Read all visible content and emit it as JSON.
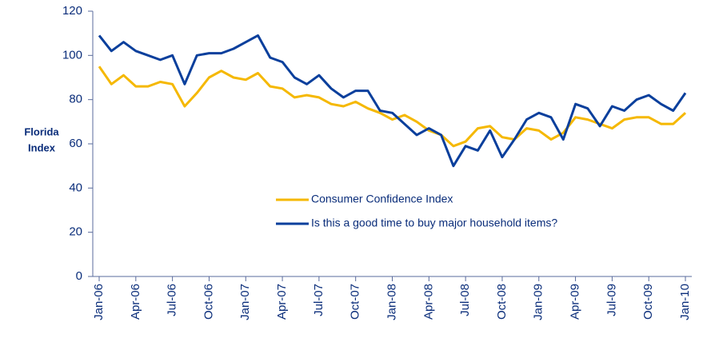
{
  "chart_data": {
    "type": "line",
    "ylabel_lines": [
      "Florida",
      "Index"
    ],
    "categories": [
      "Jan-06",
      null,
      null,
      "Apr-06",
      null,
      null,
      "Jul-06",
      null,
      null,
      "Oct-06",
      null,
      null,
      "Jan-07",
      null,
      null,
      "Apr-07",
      null,
      null,
      "Jul-07",
      null,
      null,
      "Oct-07",
      null,
      null,
      "Jan-08",
      null,
      null,
      "Apr-08",
      null,
      null,
      "Jul-08",
      null,
      null,
      "Oct-08",
      null,
      null,
      "Jan-09",
      null,
      null,
      "Apr-09",
      null,
      null,
      "Jul-09",
      null,
      null,
      "Oct-09",
      null,
      null,
      "Jan-10"
    ],
    "series": [
      {
        "name": "Consumer Confidence Index",
        "color": "#f5b800",
        "values": [
          95,
          87,
          91,
          86,
          86,
          88,
          87,
          77,
          83,
          90,
          93,
          90,
          89,
          92,
          86,
          85,
          81,
          82,
          81,
          78,
          77,
          79,
          76,
          74,
          71,
          73,
          70,
          66,
          64,
          59,
          61,
          67,
          68,
          63,
          62,
          67,
          66,
          62,
          65,
          72,
          71,
          69,
          67,
          71,
          72,
          72,
          69,
          69,
          74
        ]
      },
      {
        "name": "Is this a good time to buy major household items?",
        "color": "#0a3f9c",
        "values": [
          109,
          102,
          106,
          102,
          100,
          98,
          100,
          87,
          100,
          101,
          101,
          103,
          106,
          109,
          99,
          97,
          90,
          87,
          91,
          85,
          81,
          84,
          84,
          75,
          74,
          69,
          64,
          67,
          64,
          50,
          59,
          57,
          66,
          54,
          62,
          71,
          74,
          72,
          62,
          78,
          76,
          68,
          77,
          75,
          80,
          82,
          78,
          75,
          83
        ]
      }
    ],
    "ylim": [
      0,
      120
    ],
    "yticks": [
      0,
      20,
      40,
      60,
      80,
      100,
      120
    ],
    "grid": false
  }
}
